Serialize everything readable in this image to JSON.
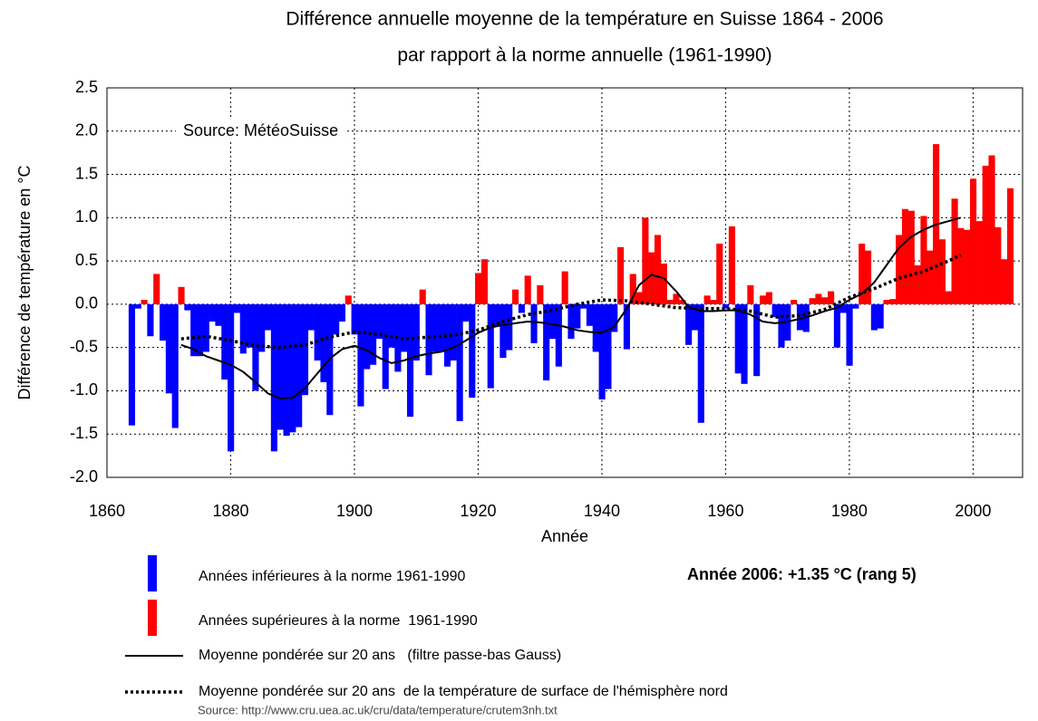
{
  "chart_data": {
    "type": "bar",
    "title": [
      "Différence annuelle moyenne de la température en Suisse 1864 - 2006",
      "par rapport à la norme annuelle (1961-1990)"
    ],
    "y_label": "Différence de température en °C",
    "x_label": "Année",
    "annotations": [
      "Source: MétéoSuisse",
      "Année 2006: +1.35 °C (rang 5)",
      "Source: http://www.cru.uea.ac.uk/cru/data/temperature/crutem3nh.txt"
    ],
    "xlim": [
      1860,
      2008
    ],
    "xticks": [
      1860,
      1880,
      1900,
      1920,
      1940,
      1960,
      1980,
      2000
    ],
    "ylim": [
      -2,
      2.5
    ],
    "yticks": [
      2.5,
      {
        "value": 2,
        "label": "2.0"
      },
      1.5,
      {
        "value": 1,
        "label": "1.0"
      },
      0.5,
      {
        "value": 0,
        "label": "0.0"
      },
      -0.5,
      {
        "value": -1,
        "label": "-1.0"
      },
      -1.5,
      {
        "value": -2,
        "label": "-2.0"
      }
    ],
    "grid": true,
    "x": [
      1864,
      1865,
      1866,
      1867,
      1868,
      1869,
      1870,
      1871,
      1872,
      1873,
      1874,
      1875,
      1876,
      1877,
      1878,
      1879,
      1880,
      1881,
      1882,
      1883,
      1884,
      1885,
      1886,
      1887,
      1888,
      1889,
      1890,
      1891,
      1892,
      1893,
      1894,
      1895,
      1896,
      1897,
      1898,
      1899,
      1900,
      1901,
      1902,
      1903,
      1904,
      1905,
      1906,
      1907,
      1908,
      1909,
      1910,
      1911,
      1912,
      1913,
      1914,
      1915,
      1916,
      1917,
      1918,
      1919,
      1920,
      1921,
      1922,
      1923,
      1924,
      1925,
      1926,
      1927,
      1928,
      1929,
      1930,
      1931,
      1932,
      1933,
      1934,
      1935,
      1936,
      1937,
      1938,
      1939,
      1940,
      1941,
      1942,
      1943,
      1944,
      1945,
      1946,
      1947,
      1948,
      1949,
      1950,
      1951,
      1952,
      1953,
      1954,
      1955,
      1956,
      1957,
      1958,
      1959,
      1960,
      1961,
      1962,
      1963,
      1964,
      1965,
      1966,
      1967,
      1968,
      1969,
      1970,
      1971,
      1972,
      1973,
      1974,
      1975,
      1976,
      1977,
      1978,
      1979,
      1980,
      1981,
      1982,
      1983,
      1984,
      1985,
      1986,
      1987,
      1988,
      1989,
      1990,
      1991,
      1992,
      1993,
      1994,
      1995,
      1996,
      1997,
      1998,
      1999,
      2000,
      2001,
      2002,
      2003,
      2004,
      2005,
      2006
    ],
    "values": [
      -1.4,
      -0.05,
      0.05,
      -0.37,
      0.35,
      -0.42,
      -1.03,
      -1.43,
      0.2,
      -0.07,
      -0.6,
      -0.6,
      -0.55,
      -0.2,
      -0.25,
      -0.87,
      -1.7,
      -0.1,
      -0.57,
      -0.5,
      -1.0,
      -0.55,
      -0.3,
      -1.7,
      -1.45,
      -1.52,
      -1.48,
      -1.42,
      -1.05,
      -0.3,
      -0.65,
      -0.9,
      -1.28,
      -0.35,
      -0.2,
      0.1,
      -0.35,
      -1.18,
      -0.75,
      -0.7,
      -0.4,
      -0.98,
      -0.5,
      -0.78,
      -0.55,
      -1.3,
      -0.65,
      0.17,
      -0.82,
      -0.55,
      -0.55,
      -0.72,
      -0.65,
      -1.35,
      -0.2,
      -1.08,
      0.36,
      0.52,
      -0.97,
      -0.25,
      -0.62,
      -0.53,
      0.17,
      -0.1,
      0.33,
      -0.45,
      0.22,
      -0.88,
      -0.4,
      -0.72,
      0.38,
      -0.4,
      -0.28,
      -0.05,
      -0.25,
      -0.55,
      -1.1,
      -0.98,
      -0.32,
      0.66,
      -0.52,
      0.35,
      0.14,
      1.0,
      0.6,
      0.8,
      0.47,
      0.05,
      0.12,
      0.05,
      -0.47,
      -0.3,
      -1.37,
      0.1,
      0.05,
      0.7,
      -0.05,
      0.9,
      -0.8,
      -0.92,
      0.22,
      -0.83,
      0.1,
      0.14,
      -0.15,
      -0.5,
      -0.42,
      0.05,
      -0.3,
      -0.32,
      0.07,
      0.12,
      0.08,
      0.15,
      -0.5,
      -0.1,
      -0.71,
      -0.05,
      0.7,
      0.62,
      -0.3,
      -0.28,
      0.05,
      0.06,
      0.8,
      1.1,
      1.08,
      0.45,
      1.02,
      0.62,
      1.85,
      0.75,
      0.15,
      1.22,
      0.88,
      0.86,
      1.45,
      0.96,
      1.6,
      1.72,
      0.89,
      0.52,
      1.34
    ],
    "legend": [
      {
        "name": "Années inférieures à la norme 1961-1990",
        "color": "#0000ff",
        "kind": "negative"
      },
      {
        "name": "Années supérieures à la norme  1961-1990",
        "color": "#ff0000",
        "kind": "positive"
      },
      {
        "name": "Moyenne pondérée sur 20 ans   (filtre passe-bas Gauss)",
        "color": "#000000",
        "kind": "solid"
      },
      {
        "name": "Moyenne pondérée sur 20 ans  de la température de surface de l'hémisphère nord",
        "color": "#000000",
        "kind": "dotted"
      }
    ],
    "lines": [
      {
        "x": [
          1872,
          1874,
          1876,
          1878,
          1880,
          1882,
          1884,
          1886,
          1888,
          1890,
          1892,
          1894,
          1896,
          1898,
          1900,
          1902,
          1904,
          1906,
          1908,
          1910,
          1912,
          1914,
          1916,
          1918,
          1920,
          1922,
          1924,
          1926,
          1928,
          1930,
          1932,
          1934,
          1936,
          1938,
          1940,
          1942,
          1944,
          1946,
          1948,
          1950,
          1952,
          1954,
          1956,
          1958,
          1960,
          1962,
          1964,
          1966,
          1968,
          1970,
          1972,
          1974,
          1976,
          1978,
          1980,
          1982,
          1984,
          1986,
          1988,
          1990,
          1992,
          1994,
          1996,
          1998
        ],
        "values": [
          -0.47,
          -0.52,
          -0.6,
          -0.65,
          -0.7,
          -0.78,
          -0.9,
          -1.03,
          -1.09,
          -1.08,
          -0.97,
          -0.8,
          -0.63,
          -0.52,
          -0.48,
          -0.53,
          -0.62,
          -0.68,
          -0.65,
          -0.6,
          -0.57,
          -0.55,
          -0.5,
          -0.42,
          -0.33,
          -0.27,
          -0.24,
          -0.22,
          -0.2,
          -0.21,
          -0.23,
          -0.26,
          -0.3,
          -0.32,
          -0.33,
          -0.26,
          -0.05,
          0.22,
          0.34,
          0.3,
          0.15,
          -0.03,
          -0.08,
          -0.08,
          -0.07,
          -0.07,
          -0.12,
          -0.2,
          -0.22,
          -0.2,
          -0.17,
          -0.13,
          -0.08,
          -0.04,
          0.05,
          0.12,
          0.25,
          0.45,
          0.65,
          0.78,
          0.86,
          0.92,
          0.96,
          1.0
        ]
      },
      {
        "x": [
          1872,
          1876,
          1880,
          1884,
          1888,
          1892,
          1896,
          1900,
          1904,
          1908,
          1912,
          1916,
          1920,
          1924,
          1928,
          1932,
          1936,
          1940,
          1944,
          1948,
          1952,
          1956,
          1960,
          1964,
          1968,
          1972,
          1976,
          1980,
          1984,
          1988,
          1992,
          1996,
          1998
        ],
        "values": [
          -0.4,
          -0.37,
          -0.42,
          -0.48,
          -0.5,
          -0.47,
          -0.38,
          -0.32,
          -0.35,
          -0.4,
          -0.38,
          -0.36,
          -0.3,
          -0.2,
          -0.12,
          -0.07,
          0.0,
          0.05,
          0.04,
          0.0,
          -0.04,
          -0.05,
          -0.05,
          -0.08,
          -0.15,
          -0.13,
          -0.06,
          0.08,
          0.18,
          0.3,
          0.38,
          0.5,
          0.57
        ]
      }
    ]
  }
}
